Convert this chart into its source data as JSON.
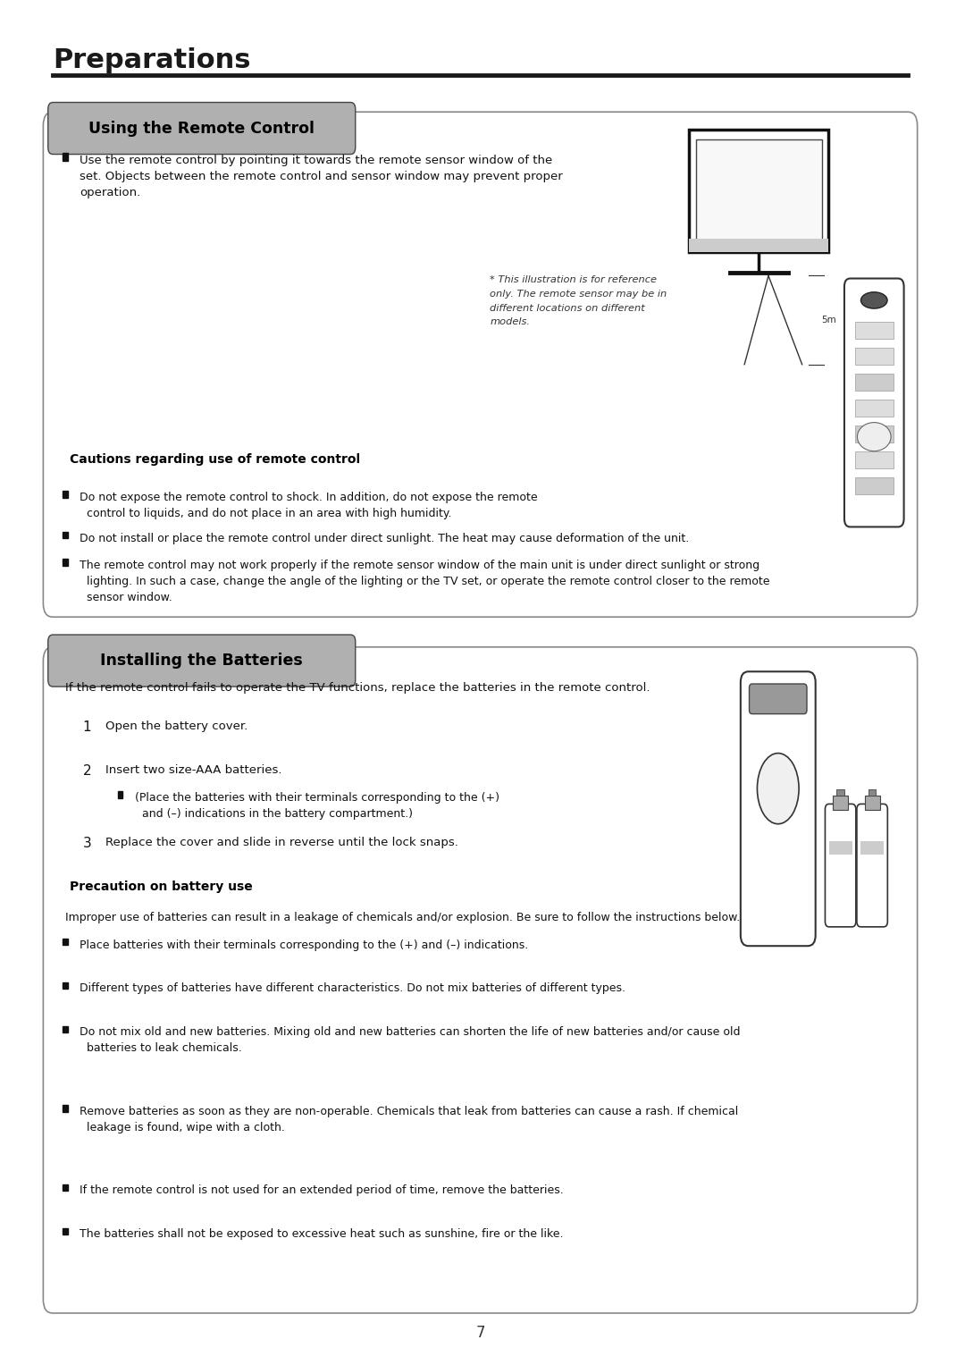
{
  "title": "Preparations",
  "section1_title": "Using the Remote Control",
  "section2_title": "Installing the Batteries",
  "bg_color": "#ffffff",
  "title_color": "#1a1a1a",
  "section_header_bg": "#b0b0b0",
  "section_header_text": "#000000",
  "box_border_color": "#555555",
  "title_underline_color": "#1a1a1a",
  "body_text_color": "#111111",
  "page_number": "7",
  "section1_text1": "Use the remote control by pointing it towards the remote sensor window of the\nset. Objects between the remote control and sensor window may prevent proper\noperation.",
  "illustration_caption": "* This illustration is for reference\nonly. The remote sensor may be in\ndifferent locations on different\nmodels.",
  "distance_label": "5m",
  "cautions_title": "Cautions regarding use of remote control",
  "caution1": "Do not expose the remote control to shock. In addition, do not expose the remote\n  control to liquids, and do not place in an area with high humidity.",
  "caution2": "Do not install or place the remote control under direct sunlight. The heat may cause deformation of the unit.",
  "caution3": "The remote control may not work properly if the remote sensor window of the main unit is under direct sunlight or strong\n  lighting. In such a case, change the angle of the lighting or the TV set, or operate the remote control closer to the remote\n  sensor window.",
  "batteries_intro": "If the remote control fails to operate the TV functions, replace the batteries in the remote control.",
  "step1": "Open the battery cover.",
  "step2": "Insert two size-AAA batteries.",
  "step2_sub": "(Place the batteries with their terminals corresponding to the (+)\n  and (–) indications in the battery compartment.)",
  "step3": "Replace the cover and slide in reverse until the lock snaps.",
  "precaution_title": "Precaution on battery use",
  "precaution_intro": "Improper use of batteries can result in a leakage of chemicals and/or explosion. Be sure to follow the instructions below.",
  "precaution1": "Place batteries with their terminals corresponding to the (+) and (–) indications.",
  "precaution2": "Different types of batteries have different characteristics. Do not mix batteries of different types.",
  "precaution3": "Do not mix old and new batteries. Mixing old and new batteries can shorten the life of new batteries and/or cause old\n  batteries to leak chemicals.",
  "precaution4": "Remove batteries as soon as they are non-operable. Chemicals that leak from batteries can cause a rash. If chemical\n  leakage is found, wipe with a cloth.",
  "precaution5": "If the remote control is not used for an extended period of time, remove the batteries.",
  "precaution6": "The batteries shall not be exposed to excessive heat such as sunshine, fire or the like."
}
